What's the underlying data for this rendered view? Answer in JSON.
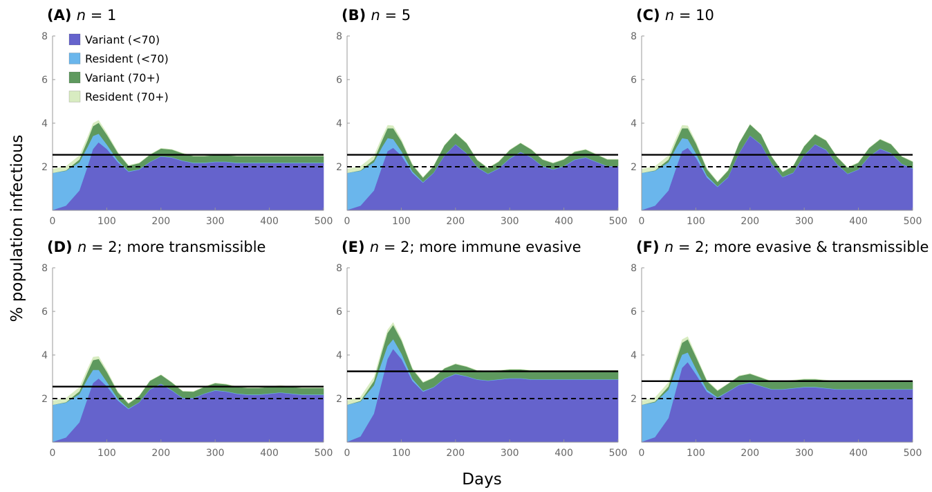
{
  "figure": {
    "ylabel": "% population infectious",
    "xlabel": "Days"
  },
  "legend": {
    "placement": "top-left of panel A",
    "items": [
      {
        "label": "Variant (<70)",
        "color": "#6563cc"
      },
      {
        "label": "Resident (<70)",
        "color": "#6ab6ec"
      },
      {
        "label": "Variant (70+)",
        "color": "#5e995e"
      },
      {
        "label": "Resident (70+)",
        "color": "#d8ecc1"
      }
    ]
  },
  "colors": {
    "variant_young": "#6563cc",
    "resident_young": "#6ab6ec",
    "variant_old": "#5e995e",
    "resident_old": "#d8ecc1",
    "axis": "#999999",
    "reference_line": "#000000"
  },
  "chart_data": [
    {
      "type": "area",
      "stacked": true,
      "label": "(A)",
      "title_n": "n",
      "title_rest": " = 1",
      "xlim": [
        0,
        500
      ],
      "ylim": [
        0,
        8
      ],
      "xticks": [
        "0",
        "100",
        "200",
        "300",
        "400",
        "500"
      ],
      "yticks": [
        "2",
        "4",
        "6",
        "8"
      ],
      "x": [
        0,
        25,
        50,
        65,
        75,
        85,
        100,
        120,
        140,
        160,
        180,
        200,
        220,
        240,
        260,
        280,
        300,
        320,
        340,
        360,
        380,
        400,
        420,
        440,
        460,
        480,
        500
      ],
      "series": [
        {
          "name": "Variant (<70)",
          "values": [
            0,
            0.2,
            0.9,
            2.0,
            2.8,
            3.1,
            2.8,
            2.2,
            1.75,
            1.85,
            2.2,
            2.45,
            2.4,
            2.25,
            2.15,
            2.15,
            2.2,
            2.2,
            2.15,
            2.15,
            2.15,
            2.15,
            2.15,
            2.15,
            2.15,
            2.15,
            2.15
          ]
        },
        {
          "name": "Resident (<70)",
          "values": [
            1.7,
            1.6,
            1.3,
            0.9,
            0.6,
            0.4,
            0.2,
            0.08,
            0.03,
            0.02,
            0.02,
            0.02,
            0.02,
            0.02,
            0.02,
            0.02,
            0.02,
            0.02,
            0.02,
            0.02,
            0.02,
            0.02,
            0.02,
            0.02,
            0.02,
            0.02,
            0.02
          ]
        },
        {
          "name": "Variant (70+)",
          "values": [
            0,
            0.02,
            0.12,
            0.3,
            0.45,
            0.5,
            0.45,
            0.35,
            0.25,
            0.28,
            0.32,
            0.35,
            0.35,
            0.33,
            0.3,
            0.3,
            0.3,
            0.3,
            0.3,
            0.3,
            0.3,
            0.3,
            0.3,
            0.3,
            0.3,
            0.3,
            0.3
          ]
        },
        {
          "name": "Resident (70+)",
          "values": [
            0.2,
            0.2,
            0.2,
            0.18,
            0.15,
            0.13,
            0.1,
            0.06,
            0.04,
            0.03,
            0.03,
            0.03,
            0.03,
            0.03,
            0.03,
            0.03,
            0.03,
            0.03,
            0.03,
            0.03,
            0.03,
            0.03,
            0.03,
            0.03,
            0.03,
            0.03,
            0.03
          ]
        }
      ],
      "solid_line": 2.55,
      "dashed_line": 2.0
    },
    {
      "type": "area",
      "stacked": true,
      "label": "(B)",
      "title_n": "n",
      "title_rest": " = 5",
      "xlim": [
        0,
        500
      ],
      "ylim": [
        0,
        8
      ],
      "xticks": [
        "0",
        "100",
        "200",
        "300",
        "400",
        "500"
      ],
      "yticks": [
        "2",
        "4",
        "6",
        "8"
      ],
      "x": [
        0,
        25,
        50,
        65,
        75,
        85,
        100,
        120,
        140,
        160,
        180,
        200,
        220,
        240,
        260,
        280,
        300,
        320,
        340,
        360,
        380,
        400,
        420,
        440,
        460,
        480,
        500
      ],
      "series": [
        {
          "name": "Variant (<70)",
          "values": [
            0,
            0.2,
            0.9,
            2.0,
            2.7,
            2.85,
            2.5,
            1.7,
            1.25,
            1.7,
            2.5,
            3.0,
            2.6,
            1.95,
            1.65,
            1.9,
            2.35,
            2.65,
            2.4,
            2.0,
            1.85,
            2.0,
            2.3,
            2.4,
            2.2,
            2.0,
            2.0
          ]
        },
        {
          "name": "Resident (<70)",
          "values": [
            1.7,
            1.6,
            1.3,
            0.9,
            0.6,
            0.4,
            0.2,
            0.08,
            0.03,
            0.02,
            0.02,
            0.02,
            0.02,
            0.02,
            0.02,
            0.02,
            0.02,
            0.02,
            0.02,
            0.02,
            0.02,
            0.02,
            0.02,
            0.02,
            0.02,
            0.02,
            0.02
          ]
        },
        {
          "name": "Variant (70+)",
          "values": [
            0,
            0.02,
            0.12,
            0.3,
            0.45,
            0.5,
            0.45,
            0.3,
            0.2,
            0.3,
            0.45,
            0.5,
            0.45,
            0.32,
            0.25,
            0.3,
            0.38,
            0.4,
            0.35,
            0.3,
            0.28,
            0.3,
            0.35,
            0.35,
            0.33,
            0.3,
            0.3
          ]
        },
        {
          "name": "Resident (70+)",
          "values": [
            0.2,
            0.2,
            0.2,
            0.18,
            0.15,
            0.13,
            0.1,
            0.06,
            0.04,
            0.03,
            0.03,
            0.03,
            0.03,
            0.03,
            0.03,
            0.03,
            0.03,
            0.03,
            0.03,
            0.03,
            0.03,
            0.03,
            0.03,
            0.03,
            0.03,
            0.03,
            0.03
          ]
        }
      ],
      "solid_line": 2.55,
      "dashed_line": 2.0
    },
    {
      "type": "area",
      "stacked": true,
      "label": "(C)",
      "title_n": "n",
      "title_rest": " = 10",
      "xlim": [
        0,
        500
      ],
      "ylim": [
        0,
        8
      ],
      "xticks": [
        "0",
        "100",
        "200",
        "300",
        "400",
        "500"
      ],
      "yticks": [
        "2",
        "4",
        "6",
        "8"
      ],
      "x": [
        0,
        25,
        50,
        65,
        75,
        85,
        100,
        120,
        140,
        160,
        180,
        200,
        220,
        240,
        260,
        280,
        300,
        320,
        340,
        360,
        380,
        400,
        420,
        440,
        460,
        480,
        500
      ],
      "series": [
        {
          "name": "Variant (<70)",
          "values": [
            0,
            0.2,
            0.9,
            2.0,
            2.7,
            2.85,
            2.4,
            1.5,
            1.05,
            1.5,
            2.6,
            3.4,
            3.0,
            2.1,
            1.5,
            1.7,
            2.5,
            3.0,
            2.75,
            2.1,
            1.65,
            1.85,
            2.45,
            2.8,
            2.6,
            2.1,
            1.9
          ]
        },
        {
          "name": "Resident (<70)",
          "values": [
            1.7,
            1.6,
            1.3,
            0.9,
            0.6,
            0.4,
            0.2,
            0.08,
            0.03,
            0.02,
            0.02,
            0.02,
            0.02,
            0.02,
            0.02,
            0.02,
            0.02,
            0.02,
            0.02,
            0.02,
            0.02,
            0.02,
            0.02,
            0.02,
            0.02,
            0.02,
            0.02
          ]
        },
        {
          "name": "Variant (70+)",
          "values": [
            0,
            0.02,
            0.12,
            0.3,
            0.45,
            0.5,
            0.45,
            0.3,
            0.2,
            0.3,
            0.45,
            0.5,
            0.45,
            0.32,
            0.22,
            0.3,
            0.4,
            0.45,
            0.42,
            0.33,
            0.27,
            0.3,
            0.38,
            0.42,
            0.4,
            0.33,
            0.3
          ]
        },
        {
          "name": "Resident (70+)",
          "values": [
            0.2,
            0.2,
            0.2,
            0.18,
            0.15,
            0.13,
            0.1,
            0.06,
            0.04,
            0.03,
            0.03,
            0.03,
            0.03,
            0.03,
            0.03,
            0.03,
            0.03,
            0.03,
            0.03,
            0.03,
            0.03,
            0.03,
            0.03,
            0.03,
            0.03,
            0.03,
            0.03
          ]
        }
      ],
      "solid_line": 2.55,
      "dashed_line": 2.0
    },
    {
      "type": "area",
      "stacked": true,
      "label": "(D)",
      "title_n": "n",
      "title_rest": " = 2; more transmissible",
      "xlim": [
        0,
        500
      ],
      "ylim": [
        0,
        8
      ],
      "xticks": [
        "0",
        "100",
        "200",
        "300",
        "400",
        "500"
      ],
      "yticks": [
        "2",
        "4",
        "6",
        "8"
      ],
      "x": [
        0,
        25,
        50,
        65,
        75,
        85,
        100,
        120,
        140,
        160,
        180,
        200,
        220,
        240,
        260,
        280,
        300,
        320,
        340,
        360,
        380,
        400,
        420,
        440,
        460,
        480,
        500
      ],
      "series": [
        {
          "name": "Variant (<70)",
          "values": [
            0,
            0.2,
            0.9,
            2.0,
            2.7,
            2.9,
            2.55,
            1.9,
            1.5,
            1.8,
            2.4,
            2.65,
            2.35,
            2.0,
            2.0,
            2.2,
            2.35,
            2.3,
            2.2,
            2.15,
            2.15,
            2.2,
            2.25,
            2.2,
            2.15,
            2.15,
            2.15
          ]
        },
        {
          "name": "Resident (<70)",
          "values": [
            1.7,
            1.6,
            1.3,
            0.9,
            0.6,
            0.4,
            0.2,
            0.08,
            0.03,
            0.02,
            0.02,
            0.02,
            0.02,
            0.02,
            0.02,
            0.02,
            0.02,
            0.02,
            0.02,
            0.02,
            0.02,
            0.02,
            0.02,
            0.02,
            0.02,
            0.02,
            0.02
          ]
        },
        {
          "name": "Variant (70+)",
          "values": [
            0,
            0.02,
            0.12,
            0.3,
            0.45,
            0.5,
            0.45,
            0.3,
            0.22,
            0.28,
            0.38,
            0.4,
            0.35,
            0.3,
            0.28,
            0.3,
            0.32,
            0.32,
            0.3,
            0.3,
            0.3,
            0.3,
            0.3,
            0.3,
            0.3,
            0.3,
            0.3
          ]
        },
        {
          "name": "Resident (70+)",
          "values": [
            0.2,
            0.2,
            0.2,
            0.18,
            0.15,
            0.13,
            0.1,
            0.06,
            0.04,
            0.03,
            0.03,
            0.03,
            0.03,
            0.03,
            0.03,
            0.03,
            0.03,
            0.03,
            0.03,
            0.03,
            0.03,
            0.03,
            0.03,
            0.03,
            0.03,
            0.03,
            0.03
          ]
        }
      ],
      "solid_line": 2.55,
      "dashed_line": 2.0
    },
    {
      "type": "area",
      "stacked": true,
      "label": "(E)",
      "title_n": "n",
      "title_rest": " = 2; more immune evasive",
      "xlim": [
        0,
        500
      ],
      "ylim": [
        0,
        8
      ],
      "xticks": [
        "0",
        "100",
        "200",
        "300",
        "400",
        "500"
      ],
      "yticks": [
        "2",
        "4",
        "6",
        "8"
      ],
      "x": [
        0,
        25,
        50,
        65,
        75,
        85,
        100,
        120,
        140,
        160,
        180,
        200,
        220,
        240,
        260,
        280,
        300,
        320,
        340,
        360,
        380,
        400,
        420,
        440,
        460,
        480,
        500
      ],
      "series": [
        {
          "name": "Variant (<70)",
          "values": [
            0,
            0.25,
            1.3,
            2.8,
            3.8,
            4.25,
            3.8,
            2.8,
            2.3,
            2.5,
            2.9,
            3.1,
            3.0,
            2.85,
            2.8,
            2.85,
            2.9,
            2.9,
            2.85,
            2.85,
            2.85,
            2.85,
            2.85,
            2.85,
            2.85,
            2.85,
            2.85
          ]
        },
        {
          "name": "Resident (<70)",
          "values": [
            1.7,
            1.6,
            1.3,
            0.9,
            0.6,
            0.45,
            0.25,
            0.1,
            0.04,
            0.02,
            0.02,
            0.02,
            0.02,
            0.02,
            0.02,
            0.02,
            0.02,
            0.02,
            0.02,
            0.02,
            0.02,
            0.02,
            0.02,
            0.02,
            0.02,
            0.02,
            0.02
          ]
        },
        {
          "name": "Variant (70+)",
          "values": [
            0,
            0.03,
            0.2,
            0.45,
            0.6,
            0.65,
            0.6,
            0.45,
            0.38,
            0.42,
            0.45,
            0.45,
            0.43,
            0.4,
            0.4,
            0.4,
            0.4,
            0.4,
            0.4,
            0.4,
            0.4,
            0.4,
            0.4,
            0.4,
            0.4,
            0.4,
            0.4
          ]
        },
        {
          "name": "Resident (70+)",
          "values": [
            0.2,
            0.2,
            0.2,
            0.18,
            0.16,
            0.14,
            0.1,
            0.06,
            0.04,
            0.03,
            0.03,
            0.03,
            0.03,
            0.03,
            0.03,
            0.03,
            0.03,
            0.03,
            0.03,
            0.03,
            0.03,
            0.03,
            0.03,
            0.03,
            0.03,
            0.03,
            0.03
          ]
        }
      ],
      "solid_line": 3.25,
      "dashed_line": 2.0
    },
    {
      "type": "area",
      "stacked": true,
      "label": "(F)",
      "title_n": "n",
      "title_rest": " = 2; more evasive & transmissible",
      "xlim": [
        0,
        500
      ],
      "ylim": [
        0,
        8
      ],
      "xticks": [
        "0",
        "100",
        "200",
        "300",
        "400",
        "500"
      ],
      "yticks": [
        "2",
        "4",
        "6",
        "8"
      ],
      "x": [
        0,
        25,
        50,
        65,
        75,
        85,
        100,
        120,
        140,
        160,
        180,
        200,
        220,
        240,
        260,
        280,
        300,
        320,
        340,
        360,
        380,
        400,
        420,
        440,
        460,
        480,
        500
      ],
      "series": [
        {
          "name": "Variant (<70)",
          "values": [
            0,
            0.22,
            1.1,
            2.5,
            3.4,
            3.65,
            3.1,
            2.3,
            2.0,
            2.3,
            2.6,
            2.7,
            2.55,
            2.4,
            2.4,
            2.45,
            2.5,
            2.5,
            2.45,
            2.4,
            2.4,
            2.4,
            2.4,
            2.4,
            2.4,
            2.4,
            2.4
          ]
        },
        {
          "name": "Resident (<70)",
          "values": [
            1.7,
            1.6,
            1.3,
            0.9,
            0.6,
            0.45,
            0.25,
            0.1,
            0.04,
            0.02,
            0.02,
            0.02,
            0.02,
            0.02,
            0.02,
            0.02,
            0.02,
            0.02,
            0.02,
            0.02,
            0.02,
            0.02,
            0.02,
            0.02,
            0.02,
            0.02,
            0.02
          ]
        },
        {
          "name": "Variant (70+)",
          "values": [
            0,
            0.03,
            0.15,
            0.4,
            0.55,
            0.6,
            0.55,
            0.4,
            0.3,
            0.35,
            0.4,
            0.4,
            0.38,
            0.35,
            0.35,
            0.35,
            0.35,
            0.35,
            0.35,
            0.35,
            0.35,
            0.35,
            0.35,
            0.35,
            0.35,
            0.35,
            0.35
          ]
        },
        {
          "name": "Resident (70+)",
          "values": [
            0.2,
            0.2,
            0.2,
            0.18,
            0.16,
            0.14,
            0.1,
            0.06,
            0.04,
            0.03,
            0.03,
            0.03,
            0.03,
            0.03,
            0.03,
            0.03,
            0.03,
            0.03,
            0.03,
            0.03,
            0.03,
            0.03,
            0.03,
            0.03,
            0.03,
            0.03,
            0.03
          ]
        }
      ],
      "solid_line": 2.8,
      "dashed_line": 2.0
    }
  ]
}
